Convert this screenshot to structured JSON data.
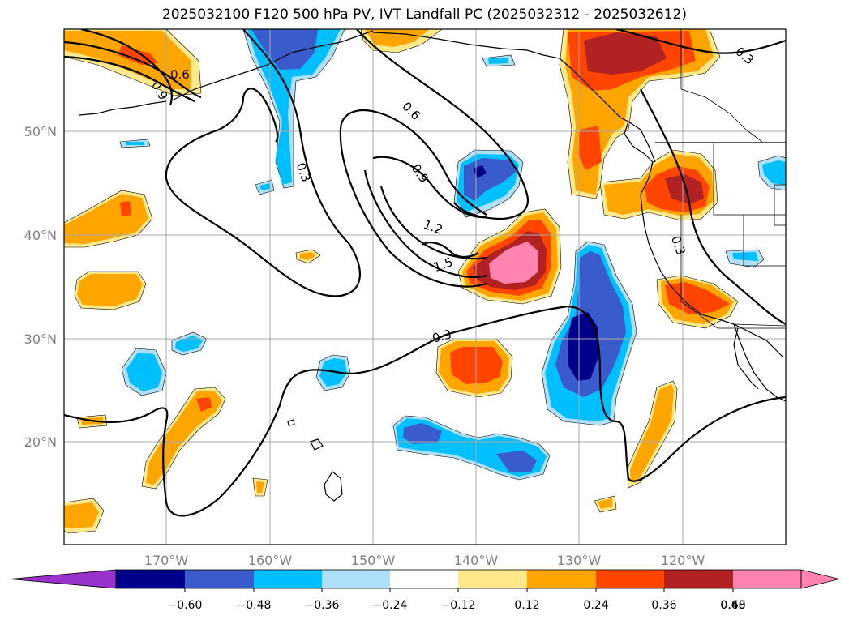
{
  "title": "2025032100 F120 500 hPa PV, IVT Landfall PC (2025032312 - 2025032612)",
  "map": {
    "lat_labels": [
      "20°N",
      "30°N",
      "40°N",
      "50°N"
    ],
    "lon_labels": [
      "170°W",
      "160°W",
      "150°W",
      "140°W",
      "130°W",
      "120°W"
    ],
    "contour_labels": [
      "0.6",
      "0.9",
      "0.3",
      "0.6",
      "0.9",
      "1.2",
      "1.5",
      "0.3",
      "0.3",
      "0.3"
    ],
    "grid": true
  },
  "colorbar": {
    "ticks": [
      "−0.60",
      "−0.48",
      "−0.36",
      "−0.24",
      "−0.12",
      "0.12",
      "0.24",
      "0.36",
      "0.48",
      "0.60"
    ],
    "colors": [
      "#9932cc",
      "#00008b",
      "#3a5bcc",
      "#00bfff",
      "#aee0fa",
      "#ffffff",
      "#ffe98a",
      "#ffa500",
      "#ff4500",
      "#b22222",
      "#ff85b0"
    ],
    "extend": "both"
  },
  "colors": {
    "neg_1": "#aee0fa",
    "neg_2": "#00bfff",
    "neg_3": "#3a5bcc",
    "neg_4": "#00008b",
    "pos_1": "#ffe98a",
    "pos_2": "#ffa500",
    "pos_3": "#ff4500",
    "pos_4": "#b22222",
    "pos_5": "#ff85b0",
    "grid": "#a9a9a9",
    "contour": "#000000"
  }
}
